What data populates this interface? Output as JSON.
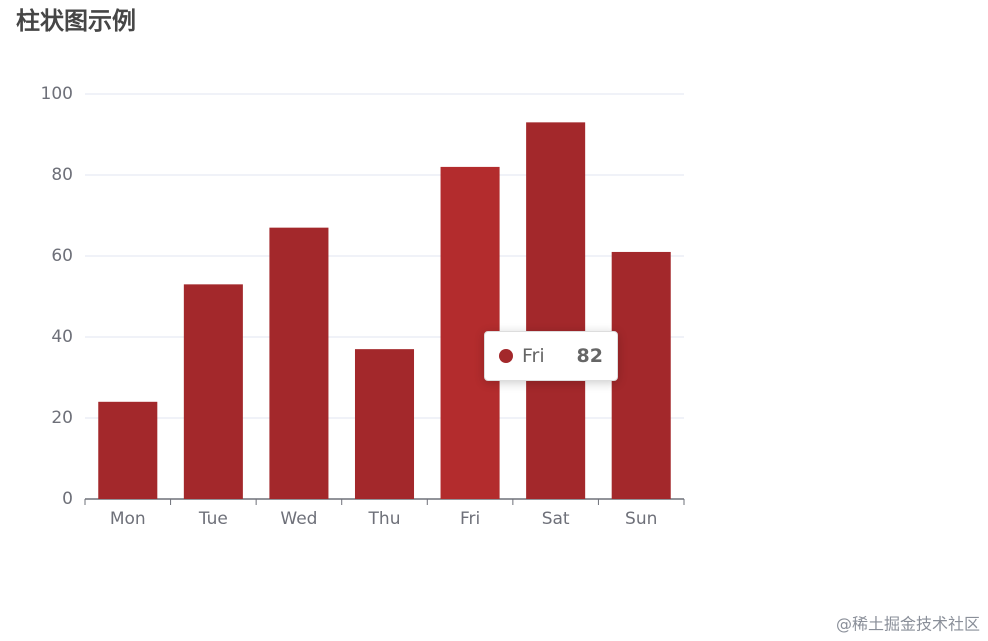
{
  "chart_data": {
    "type": "bar",
    "title": "柱状图示例",
    "categories": [
      "Mon",
      "Tue",
      "Wed",
      "Thu",
      "Fri",
      "Sat",
      "Sun"
    ],
    "values": [
      24,
      53,
      67,
      37,
      82,
      93,
      61
    ],
    "color": "#a3282b",
    "highlight_color": "#b32c2d",
    "ylim": [
      0,
      100
    ],
    "yticks": [
      0,
      20,
      40,
      60,
      80,
      100
    ],
    "grid": true
  },
  "watermark": "@稀土掘金技术社区"
}
